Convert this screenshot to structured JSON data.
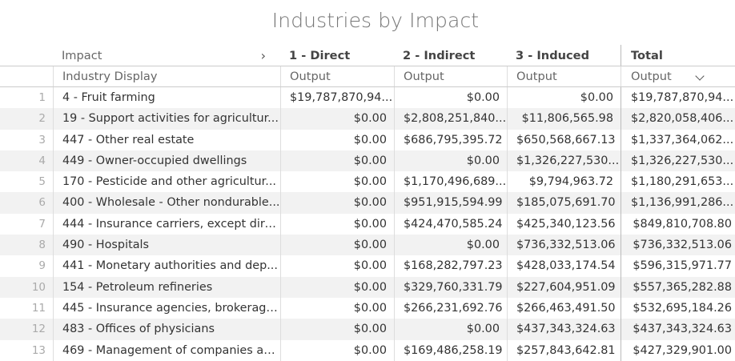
{
  "title": "Industries by Impact",
  "header": {
    "impact_label": "Impact",
    "industry_label": "Industry Display",
    "direct_label": "1 - Direct",
    "indirect_label": "2 - Indirect",
    "induced_label": "3 - Induced",
    "total_label": "Total",
    "output_label": "Output"
  },
  "icons": {
    "expand": "chevron-right-icon",
    "sort": "chevron-down-icon"
  },
  "rows": [
    {
      "index": "1",
      "industry": "4 - Fruit farming",
      "direct": "$19,787,870,94...",
      "indirect": "$0.00",
      "induced": "$0.00",
      "total": "$19,787,870,94..."
    },
    {
      "index": "2",
      "industry": "19 - Support activities for agricultur...",
      "direct": "$0.00",
      "indirect": "$2,808,251,840...",
      "induced": "$11,806,565.98",
      "total": "$2,820,058,406..."
    },
    {
      "index": "3",
      "industry": "447 - Other real estate",
      "direct": "$0.00",
      "indirect": "$686,795,395.72",
      "induced": "$650,568,667.13",
      "total": "$1,337,364,062..."
    },
    {
      "index": "4",
      "industry": "449 - Owner-occupied dwellings",
      "direct": "$0.00",
      "indirect": "$0.00",
      "induced": "$1,326,227,530...",
      "total": "$1,326,227,530..."
    },
    {
      "index": "5",
      "industry": "170 - Pesticide and other agricultur...",
      "direct": "$0.00",
      "indirect": "$1,170,496,689...",
      "induced": "$9,794,963.72",
      "total": "$1,180,291,653..."
    },
    {
      "index": "6",
      "industry": "400 - Wholesale - Other nondurable...",
      "direct": "$0.00",
      "indirect": "$951,915,594.99",
      "induced": "$185,075,691.70",
      "total": "$1,136,991,286..."
    },
    {
      "index": "7",
      "industry": "444 - Insurance carriers, except dire...",
      "direct": "$0.00",
      "indirect": "$424,470,585.24",
      "induced": "$425,340,123.56",
      "total": "$849,810,708.80"
    },
    {
      "index": "8",
      "industry": "490 - Hospitals",
      "direct": "$0.00",
      "indirect": "$0.00",
      "induced": "$736,332,513.06",
      "total": "$736,332,513.06"
    },
    {
      "index": "9",
      "industry": "441 - Monetary authorities and dep...",
      "direct": "$0.00",
      "indirect": "$168,282,797.23",
      "induced": "$428,033,174.54",
      "total": "$596,315,971.77"
    },
    {
      "index": "10",
      "industry": "154 - Petroleum refineries",
      "direct": "$0.00",
      "indirect": "$329,760,331.79",
      "induced": "$227,604,951.09",
      "total": "$557,365,282.88"
    },
    {
      "index": "11",
      "industry": "445 - Insurance agencies, brokerage...",
      "direct": "$0.00",
      "indirect": "$266,231,692.76",
      "induced": "$266,463,491.50",
      "total": "$532,695,184.26"
    },
    {
      "index": "12",
      "industry": "483 - Offices of physicians",
      "direct": "$0.00",
      "indirect": "$0.00",
      "induced": "$437,343,324.63",
      "total": "$437,343,324.63"
    },
    {
      "index": "13",
      "industry": "469 - Management of companies an...",
      "direct": "$0.00",
      "indirect": "$169,486,258.19",
      "induced": "$257,843,642.81",
      "total": "$427,329,901.00"
    }
  ]
}
